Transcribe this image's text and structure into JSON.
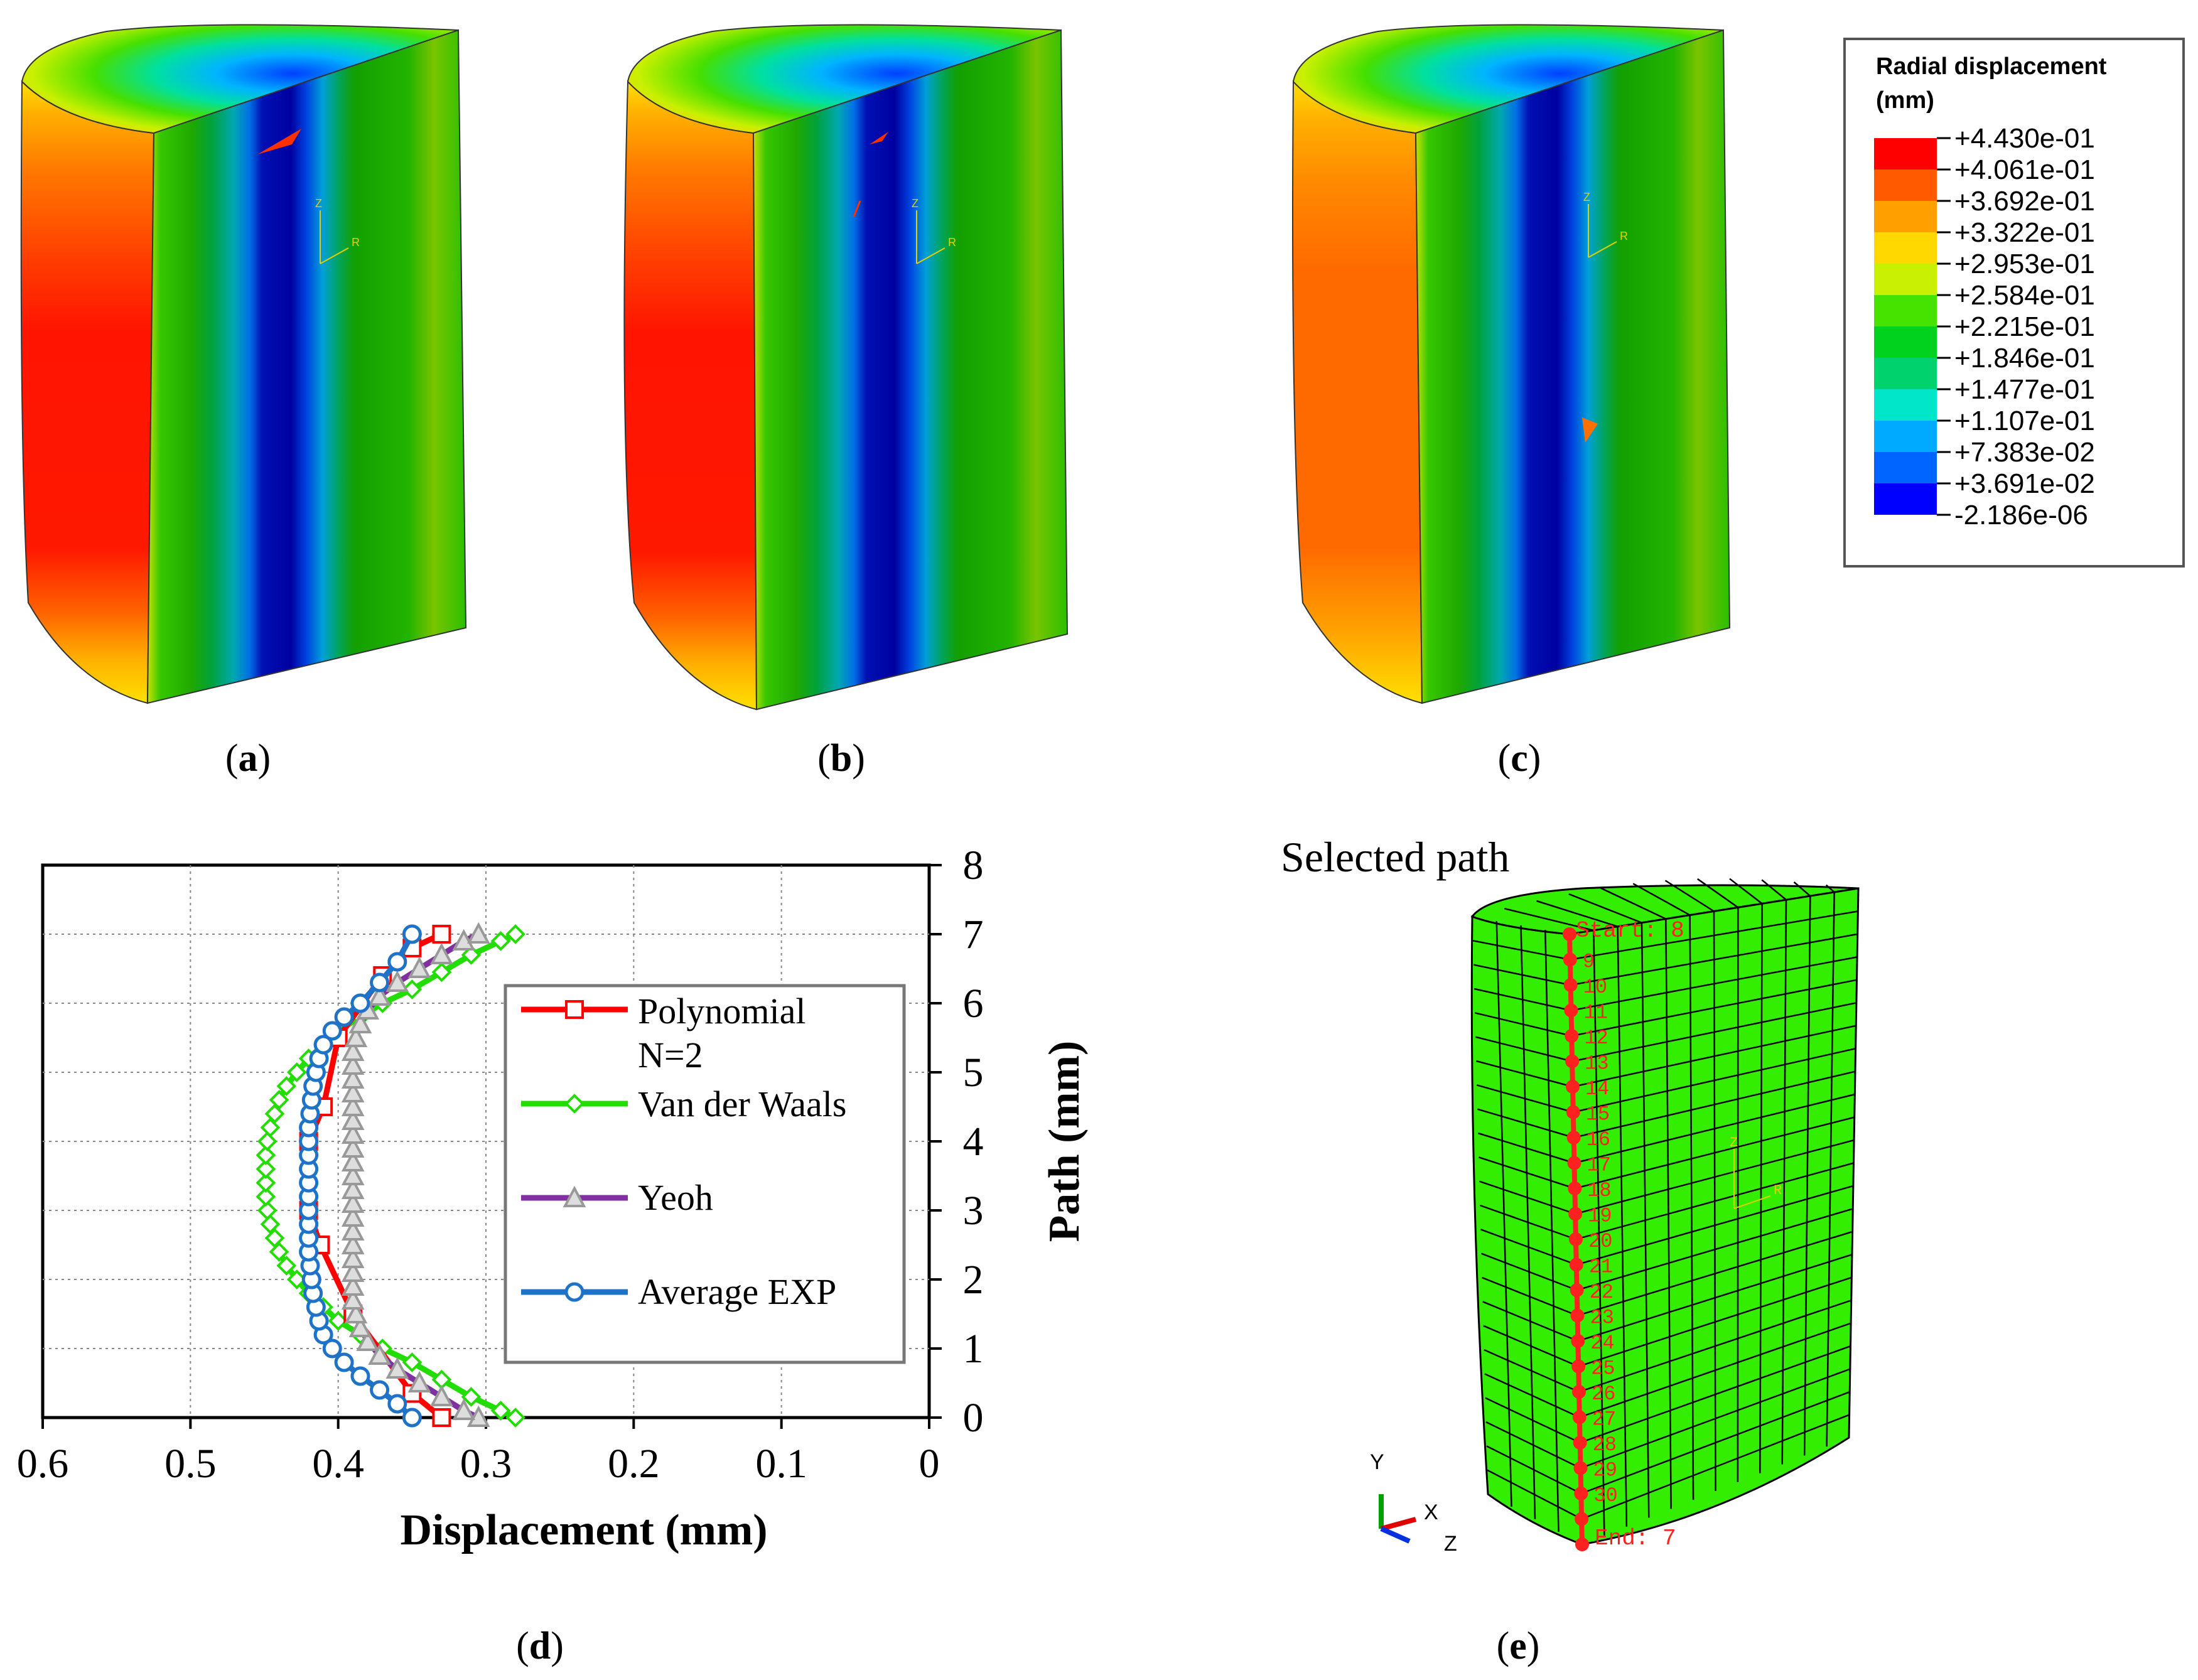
{
  "panels": {
    "a": {
      "label_open": "(",
      "label_letter": "a",
      "label_close": ")"
    },
    "b": {
      "label_open": "(",
      "label_letter": "b",
      "label_close": ")"
    },
    "c": {
      "label_open": "(",
      "label_letter": "c",
      "label_close": ")"
    },
    "d": {
      "label_open": "(",
      "label_letter": "d",
      "label_close": ")"
    },
    "e": {
      "label_open": "(",
      "label_letter": "e",
      "label_close": ")"
    }
  },
  "triad": {
    "z": "Z",
    "r": "R"
  },
  "legend_contour": {
    "title_line1": "Radial displacement",
    "title_line2": "(mm)",
    "values": [
      "+4.430e-01",
      "+4.061e-01",
      "+3.692e-01",
      "+3.322e-01",
      "+2.953e-01",
      "+2.584e-01",
      "+2.215e-01",
      "+1.846e-01",
      "+1.477e-01",
      "+1.107e-01",
      "+7.383e-02",
      "+3.691e-02",
      "-2.186e-06"
    ],
    "colors": [
      "#ff0000",
      "#ff5a00",
      "#ffa000",
      "#ffd800",
      "#c8f000",
      "#46e300",
      "#00d21e",
      "#00d26e",
      "#00e6c8",
      "#00aaff",
      "#0064ff",
      "#0000ff"
    ]
  },
  "mesh_panel": {
    "title": "Selected path",
    "start_label": "Start: 8",
    "end_label": "End: 7",
    "node_labels": [
      "9",
      "10",
      "11",
      "12",
      "13",
      "14",
      "15",
      "16",
      "17",
      "18",
      "19",
      "20",
      "21",
      "22",
      "23",
      "24",
      "25",
      "26",
      "27",
      "28",
      "29",
      "30"
    ],
    "axis_y": "Y",
    "axis_x": "X",
    "axis_z": "Z",
    "mesh_color": "#33ee00",
    "path_color": "#ff2020"
  },
  "chart_data": {
    "type": "line",
    "title": "",
    "xlabel": "Displacement (mm)",
    "ylabel": "Path (mm)",
    "xlim": [
      0.6,
      0
    ],
    "ylim": [
      0,
      8
    ],
    "x_reversed": true,
    "y_axis_side": "right",
    "xticks": [
      "0.6",
      "0.5",
      "0.4",
      "0.3",
      "0.2",
      "0.1",
      "0"
    ],
    "yticks": [
      "0",
      "1",
      "2",
      "3",
      "4",
      "5",
      "6",
      "7",
      "8"
    ],
    "grid": true,
    "legend_position": "inside-right",
    "legend_entries": [
      "Polynomial",
      "N=2",
      "Van der Waals",
      "Yeoh",
      "Average EXP"
    ],
    "series": [
      {
        "name": "Polynomial N=2",
        "color": "#ff0000",
        "marker": "square",
        "points": [
          [
            0.33,
            0
          ],
          [
            0.35,
            0.35
          ],
          [
            0.39,
            1.5
          ],
          [
            0.412,
            2.5
          ],
          [
            0.42,
            3
          ],
          [
            0.42,
            4
          ],
          [
            0.41,
            4.5
          ],
          [
            0.4,
            5.5
          ],
          [
            0.37,
            6.4
          ],
          [
            0.35,
            6.8
          ],
          [
            0.33,
            7
          ]
        ]
      },
      {
        "name": "Van der Waals",
        "color": "#22dd00",
        "marker": "diamond",
        "points": [
          [
            0.28,
            0
          ],
          [
            0.29,
            0.1
          ],
          [
            0.31,
            0.3
          ],
          [
            0.33,
            0.55
          ],
          [
            0.35,
            0.8
          ],
          [
            0.37,
            1.0
          ],
          [
            0.385,
            1.2
          ],
          [
            0.4,
            1.4
          ],
          [
            0.41,
            1.6
          ],
          [
            0.42,
            1.8
          ],
          [
            0.428,
            2.0
          ],
          [
            0.435,
            2.2
          ],
          [
            0.44,
            2.4
          ],
          [
            0.443,
            2.6
          ],
          [
            0.446,
            2.8
          ],
          [
            0.448,
            3.0
          ],
          [
            0.449,
            3.2
          ],
          [
            0.449,
            3.4
          ],
          [
            0.449,
            3.6
          ],
          [
            0.449,
            3.8
          ],
          [
            0.448,
            4.0
          ],
          [
            0.446,
            4.2
          ],
          [
            0.443,
            4.4
          ],
          [
            0.44,
            4.6
          ],
          [
            0.435,
            4.8
          ],
          [
            0.428,
            5.0
          ],
          [
            0.42,
            5.2
          ],
          [
            0.41,
            5.4
          ],
          [
            0.4,
            5.6
          ],
          [
            0.385,
            5.8
          ],
          [
            0.37,
            6.0
          ],
          [
            0.35,
            6.2
          ],
          [
            0.33,
            6.45
          ],
          [
            0.31,
            6.7
          ],
          [
            0.29,
            6.9
          ],
          [
            0.28,
            7.0
          ]
        ]
      },
      {
        "name": "Yeoh",
        "color": "#8030a0",
        "marker": "triangle",
        "points": [
          [
            0.305,
            0
          ],
          [
            0.315,
            0.1
          ],
          [
            0.33,
            0.3
          ],
          [
            0.345,
            0.5
          ],
          [
            0.36,
            0.7
          ],
          [
            0.372,
            0.9
          ],
          [
            0.38,
            1.1
          ],
          [
            0.385,
            1.3
          ],
          [
            0.388,
            1.5
          ],
          [
            0.39,
            1.7
          ],
          [
            0.39,
            1.9
          ],
          [
            0.39,
            2.1
          ],
          [
            0.39,
            2.3
          ],
          [
            0.39,
            2.5
          ],
          [
            0.39,
            2.7
          ],
          [
            0.39,
            2.9
          ],
          [
            0.39,
            3.1
          ],
          [
            0.39,
            3.3
          ],
          [
            0.39,
            3.5
          ],
          [
            0.39,
            3.7
          ],
          [
            0.39,
            3.9
          ],
          [
            0.39,
            4.1
          ],
          [
            0.39,
            4.3
          ],
          [
            0.39,
            4.5
          ],
          [
            0.39,
            4.7
          ],
          [
            0.39,
            4.9
          ],
          [
            0.39,
            5.1
          ],
          [
            0.39,
            5.3
          ],
          [
            0.388,
            5.5
          ],
          [
            0.385,
            5.7
          ],
          [
            0.38,
            5.9
          ],
          [
            0.372,
            6.1
          ],
          [
            0.36,
            6.3
          ],
          [
            0.345,
            6.5
          ],
          [
            0.33,
            6.7
          ],
          [
            0.315,
            6.9
          ],
          [
            0.305,
            7.0
          ]
        ]
      },
      {
        "name": "Average EXP",
        "color": "#1e72c8",
        "marker": "circle",
        "points": [
          [
            0.35,
            0
          ],
          [
            0.36,
            0.2
          ],
          [
            0.372,
            0.4
          ],
          [
            0.385,
            0.6
          ],
          [
            0.396,
            0.8
          ],
          [
            0.404,
            1.0
          ],
          [
            0.41,
            1.2
          ],
          [
            0.413,
            1.4
          ],
          [
            0.415,
            1.6
          ],
          [
            0.417,
            1.8
          ],
          [
            0.418,
            2.0
          ],
          [
            0.419,
            2.2
          ],
          [
            0.42,
            2.4
          ],
          [
            0.42,
            2.6
          ],
          [
            0.42,
            2.8
          ],
          [
            0.42,
            3.0
          ],
          [
            0.42,
            3.2
          ],
          [
            0.42,
            3.4
          ],
          [
            0.42,
            3.6
          ],
          [
            0.42,
            3.8
          ],
          [
            0.42,
            4.0
          ],
          [
            0.42,
            4.2
          ],
          [
            0.419,
            4.4
          ],
          [
            0.418,
            4.6
          ],
          [
            0.417,
            4.8
          ],
          [
            0.415,
            5.0
          ],
          [
            0.413,
            5.2
          ],
          [
            0.41,
            5.4
          ],
          [
            0.404,
            5.6
          ],
          [
            0.396,
            5.8
          ],
          [
            0.385,
            6.0
          ],
          [
            0.372,
            6.3
          ],
          [
            0.36,
            6.6
          ],
          [
            0.35,
            7.0
          ]
        ]
      }
    ]
  }
}
